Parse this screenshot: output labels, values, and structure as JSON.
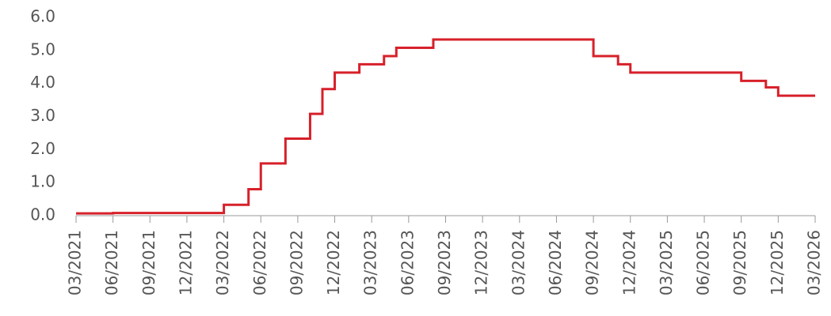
{
  "chart_data": {
    "type": "step-line",
    "x": [
      "03/2021",
      "06/2021",
      "03/2022",
      "05/2022",
      "06/2022",
      "08/2022",
      "10/2022",
      "11/2022",
      "12/2022",
      "02/2023",
      "04/2023",
      "05/2023",
      "08/2023",
      "09/2024",
      "11/2024",
      "12/2024",
      "09/2025",
      "11/2025",
      "12/2025",
      "03/2026"
    ],
    "series": [
      {
        "color": "#d7202a",
        "values": [
          0.07,
          0.08,
          0.33,
          0.8,
          1.58,
          2.33,
          3.08,
          3.83,
          4.33,
          4.58,
          4.83,
          5.08,
          5.33,
          4.83,
          4.58,
          4.33,
          4.08,
          3.88,
          3.63,
          3.63
        ]
      }
    ],
    "xlim": [
      "03/2021",
      "03/2026"
    ],
    "xticks": [
      "03/2021",
      "06/2021",
      "09/2021",
      "12/2021",
      "03/2022",
      "06/2022",
      "09/2022",
      "12/2022",
      "03/2023",
      "06/2023",
      "09/2023",
      "12/2023",
      "03/2024",
      "06/2024",
      "09/2024",
      "12/2024",
      "03/2025",
      "06/2025",
      "09/2025",
      "12/2025",
      "03/2026"
    ],
    "ylim": [
      0,
      6
    ],
    "yticks": [
      {
        "value": 0,
        "label": "0.0"
      },
      {
        "value": 1,
        "label": "1.0"
      },
      {
        "value": 2,
        "label": "2.0"
      },
      {
        "value": 3,
        "label": "3.0"
      },
      {
        "value": 4,
        "label": "4.0"
      },
      {
        "value": 5,
        "label": "5.0"
      },
      {
        "value": 6,
        "label": "6.0"
      }
    ],
    "grid": false
  }
}
